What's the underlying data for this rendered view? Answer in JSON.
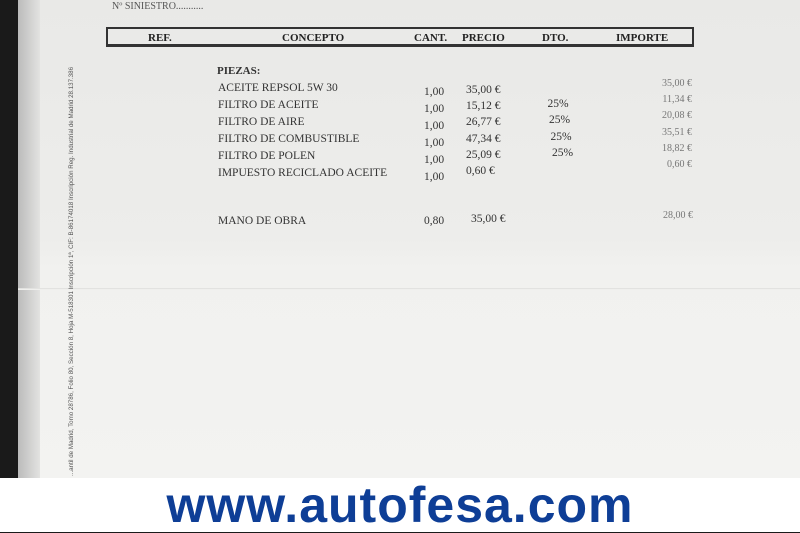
{
  "document": {
    "siniestro_label": "Nº SINIESTRO...........",
    "side_text": "...antil de Madrid, Tomo 28786, Folio 80, Sección 8, Hoja M-518301 Inscripción 1ª, CIF: B-86174018 Inscripción Reg. Industrial de Madrid 28.137.386",
    "columns": [
      "REF.",
      "CONCEPTO",
      "CANT.",
      "PRECIO",
      "DTO.",
      "IMPORTE"
    ],
    "section": "PIEZAS:",
    "items": [
      {
        "concepto": "ACEITE REPSOL 5W  30",
        "cant": "1,00",
        "precio": "35,00 €",
        "dto": "",
        "importe": "35,00 €"
      },
      {
        "concepto": "FILTRO DE ACEITE",
        "cant": "1,00",
        "precio": "15,12 €",
        "dto": "25%",
        "importe": "11,34 €"
      },
      {
        "concepto": "FILTRO DE AIRE",
        "cant": "1,00",
        "precio": "26,77 €",
        "dto": "25%",
        "importe": "20,08 €"
      },
      {
        "concepto": "FILTRO DE COMBUSTIBLE",
        "cant": "1,00",
        "precio": "47,34 €",
        "dto": "25%",
        "importe": "35,51 €"
      },
      {
        "concepto": "FILTRO DE POLEN",
        "cant": "1,00",
        "precio": "25,09 €",
        "dto": "25%",
        "importe": "18,82 €"
      },
      {
        "concepto": "IMPUESTO RECICLADO ACEITE",
        "cant": "1,00",
        "precio": "0,60 €",
        "dto": "",
        "importe": "0,60 €"
      }
    ],
    "labor": {
      "concepto": "MANO DE OBRA",
      "cant": "0,80",
      "precio": "35,00 €",
      "importe": "28,00 €"
    }
  },
  "watermark": "www.autofesa.com",
  "colors": {
    "watermark": "#0e3e96"
  }
}
